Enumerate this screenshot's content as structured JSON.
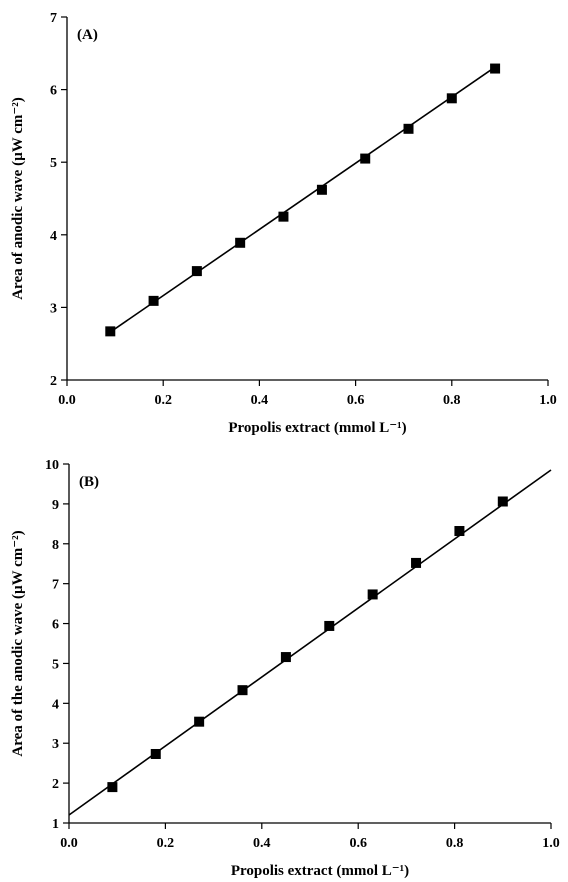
{
  "chart_data": [
    {
      "type": "scatter",
      "panel_label": "(A)",
      "xlabel": "Propolis extract (mmol L⁻¹)",
      "ylabel": "Area of anodic wave (µW cm⁻²)",
      "xlim": [
        0.0,
        1.0
      ],
      "ylim": [
        2,
        7
      ],
      "xticks": [
        "0.0",
        "0.2",
        "0.4",
        "0.6",
        "0.8",
        "1.0"
      ],
      "yticks": [
        "2",
        "3",
        "4",
        "5",
        "6",
        "7"
      ],
      "x": [
        0.09,
        0.18,
        0.27,
        0.36,
        0.45,
        0.53,
        0.62,
        0.71,
        0.8,
        0.89
      ],
      "y": [
        2.67,
        3.09,
        3.5,
        3.89,
        4.25,
        4.62,
        5.05,
        5.46,
        5.88,
        6.29
      ],
      "fit_line": {
        "x": [
          0.09,
          0.89
        ],
        "y": [
          2.66,
          6.31
        ]
      },
      "grid": false
    },
    {
      "type": "scatter",
      "panel_label": "(B)",
      "xlabel": "Propolis extract (mmol L⁻¹)",
      "ylabel": "Area of the anodic wave (µW cm⁻²)",
      "xlim": [
        0.0,
        1.0
      ],
      "ylim": [
        1,
        10
      ],
      "xticks": [
        "0.0",
        "0.2",
        "0.4",
        "0.6",
        "0.8",
        "1.0"
      ],
      "yticks": [
        "1",
        "2",
        "3",
        "4",
        "5",
        "6",
        "7",
        "8",
        "9",
        "10"
      ],
      "x": [
        0.09,
        0.18,
        0.27,
        0.36,
        0.45,
        0.54,
        0.63,
        0.72,
        0.81,
        0.9
      ],
      "y": [
        1.9,
        2.73,
        3.54,
        4.33,
        5.16,
        5.94,
        6.73,
        7.52,
        8.32,
        9.06
      ],
      "fit_line": {
        "x": [
          0.0,
          1.0
        ],
        "y": [
          1.2,
          9.85
        ]
      },
      "grid": false
    }
  ]
}
